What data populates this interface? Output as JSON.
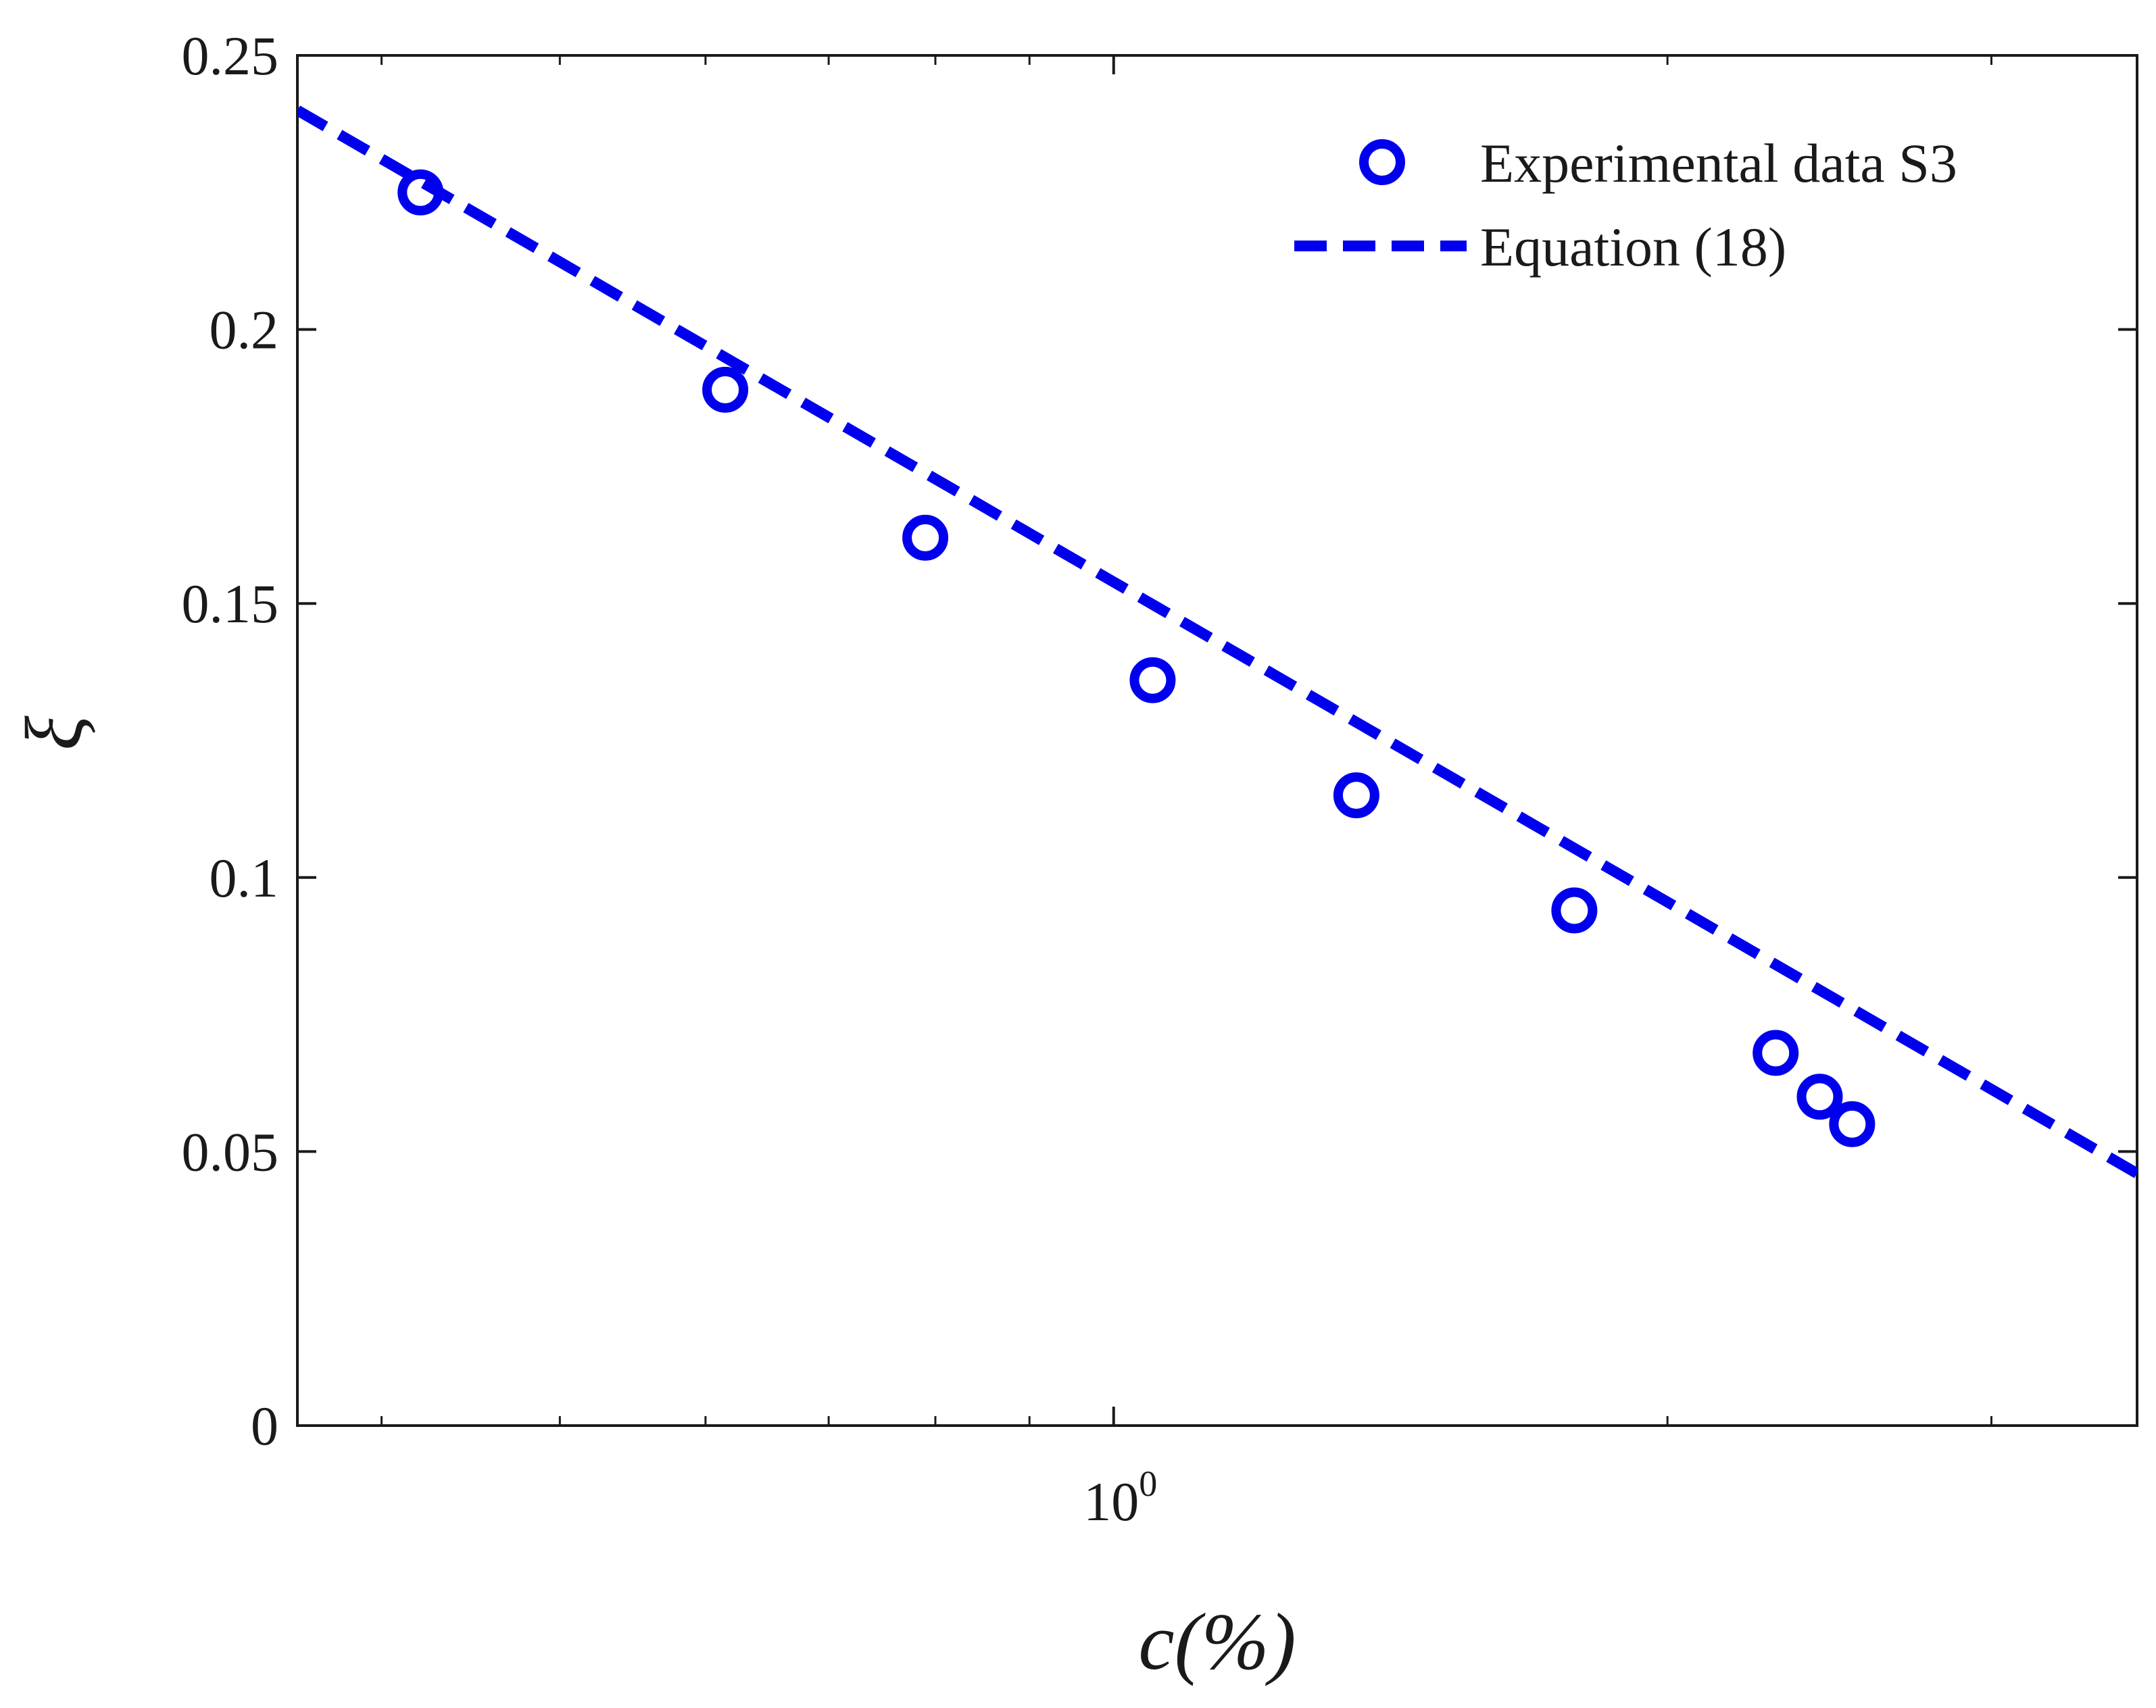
{
  "chart_data": {
    "type": "scatter",
    "xscale": "log",
    "xlim": [
      0.36,
      3.6
    ],
    "ylim": [
      0,
      0.25
    ],
    "xlabel": "c(%)",
    "ylabel": "ξ",
    "xtick_labels": [
      {
        "base": "10",
        "exp": "0",
        "value": 1
      }
    ],
    "yticks": [
      0,
      0.05,
      0.1,
      0.15,
      0.2,
      0.25
    ],
    "ytick_labels": [
      "0",
      "0.05",
      "0.1",
      "0.15",
      "0.2",
      "0.25"
    ],
    "legend": {
      "position": "top-right",
      "entries": [
        "Experimental data S3",
        "Equation (18)"
      ]
    },
    "series": [
      {
        "name": "Experimental data S3",
        "style": "circles",
        "color": "#0000ee",
        "x": [
          0.42,
          0.615,
          0.79,
          1.05,
          1.355,
          1.78,
          2.29,
          2.42,
          2.52
        ],
        "y": [
          0.225,
          0.189,
          0.162,
          0.136,
          0.115,
          0.094,
          0.068,
          0.06,
          0.055
        ]
      },
      {
        "name": "Equation (18)",
        "style": "dashed-line",
        "color": "#0000ee",
        "x": [
          0.36,
          3.6
        ],
        "y": [
          0.24,
          0.046
        ]
      }
    ]
  }
}
